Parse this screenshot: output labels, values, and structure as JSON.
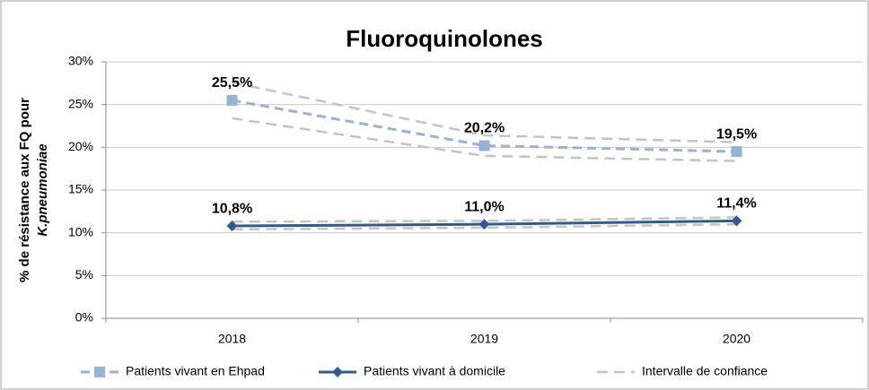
{
  "chart_data": {
    "type": "line",
    "title": "Fluoroquinolones",
    "ylabel": [
      "% de résistance aux FQ pour",
      "K.pneumoniae"
    ],
    "categories": [
      "2018",
      "2019",
      "2020"
    ],
    "ylim": [
      0,
      30
    ],
    "yticks": [
      {
        "value": 0,
        "label": "0%"
      },
      {
        "value": 5,
        "label": "5%"
      },
      {
        "value": 10,
        "label": "10%"
      },
      {
        "value": 15,
        "label": "15%"
      },
      {
        "value": 20,
        "label": "20%"
      },
      {
        "value": 25,
        "label": "25%"
      },
      {
        "value": 30,
        "label": "30%"
      }
    ],
    "grid": true,
    "legend": "bottom",
    "series": [
      {
        "name": "Patients vivant en Ehpad",
        "color": "#95b3d7",
        "marker": "square",
        "dashed": true,
        "values": [
          25.5,
          20.2,
          19.5
        ],
        "value_labels": [
          "25,5%",
          "20,2%",
          "19,5%"
        ]
      },
      {
        "name": "Patients vivant à domicile",
        "color": "#2f5b8f",
        "marker": "diamond",
        "dashed": false,
        "values": [
          10.8,
          11.0,
          11.4
        ],
        "value_labels": [
          "10,8%",
          "11,0%",
          "11,4%"
        ]
      }
    ],
    "confidence_interval": {
      "name": "Intervalle de confiance",
      "color": "#c4c4c4",
      "bands": [
        {
          "upper": [
            27.6,
            21.4,
            20.6
          ],
          "lower": [
            23.4,
            19.0,
            18.4
          ]
        },
        {
          "upper": [
            11.3,
            11.4,
            11.8
          ],
          "lower": [
            10.4,
            10.6,
            11.0
          ]
        }
      ]
    }
  }
}
